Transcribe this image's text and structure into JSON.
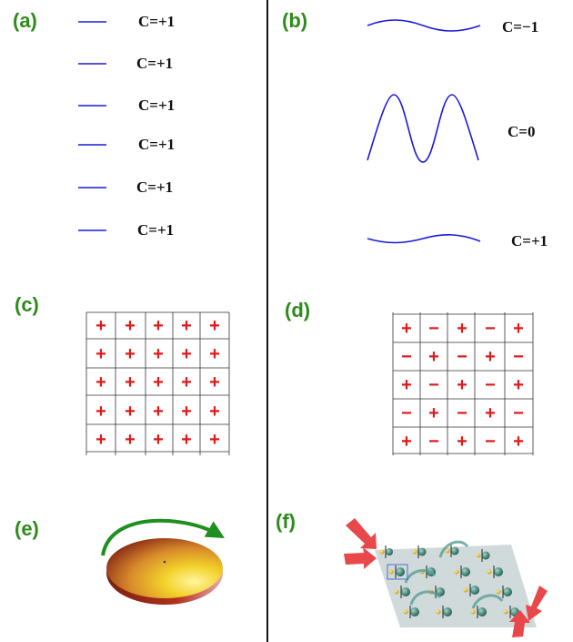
{
  "panel_labels": [
    "(a)",
    "(b)",
    "(c)",
    "(d)",
    "(e)",
    "(f)"
  ],
  "panel_a": {
    "bands": [
      {
        "chern": "C=+1"
      },
      {
        "chern": "C=+1"
      },
      {
        "chern": "C=+1"
      },
      {
        "chern": "C=+1"
      },
      {
        "chern": "C=+1"
      },
      {
        "chern": "C=+1"
      }
    ]
  },
  "panel_b": {
    "bands": [
      {
        "chern": "C=−1"
      },
      {
        "chern": "C=0"
      },
      {
        "chern": "C=+1"
      }
    ]
  },
  "panel_c": {
    "grid": [
      [
        "+",
        "+",
        "+",
        "+",
        "+"
      ],
      [
        "+",
        "+",
        "+",
        "+",
        "+"
      ],
      [
        "+",
        "+",
        "+",
        "+",
        "+"
      ],
      [
        "+",
        "+",
        "+",
        "+",
        "+"
      ],
      [
        "+",
        "+",
        "+",
        "+",
        "+"
      ]
    ]
  },
  "panel_d": {
    "grid": [
      [
        "+",
        "−",
        "+",
        "−",
        "+"
      ],
      [
        "−",
        "+",
        "−",
        "+",
        "−"
      ],
      [
        "+",
        "−",
        "+",
        "−",
        "+"
      ],
      [
        "−",
        "+",
        "−",
        "+",
        "−"
      ],
      [
        "+",
        "−",
        "+",
        "−",
        "+"
      ]
    ]
  },
  "colors": {
    "label_green": "#2e8b1a",
    "band_blue": "#1a1adc",
    "sign_red": "#e01a1a",
    "arrow_green": "#1f8f1f",
    "disk_yellow": "#f2d22a",
    "disk_red": "#b0311b",
    "pump_arrow": "#e8484b",
    "lattice_gray": "#c9d3d3"
  }
}
